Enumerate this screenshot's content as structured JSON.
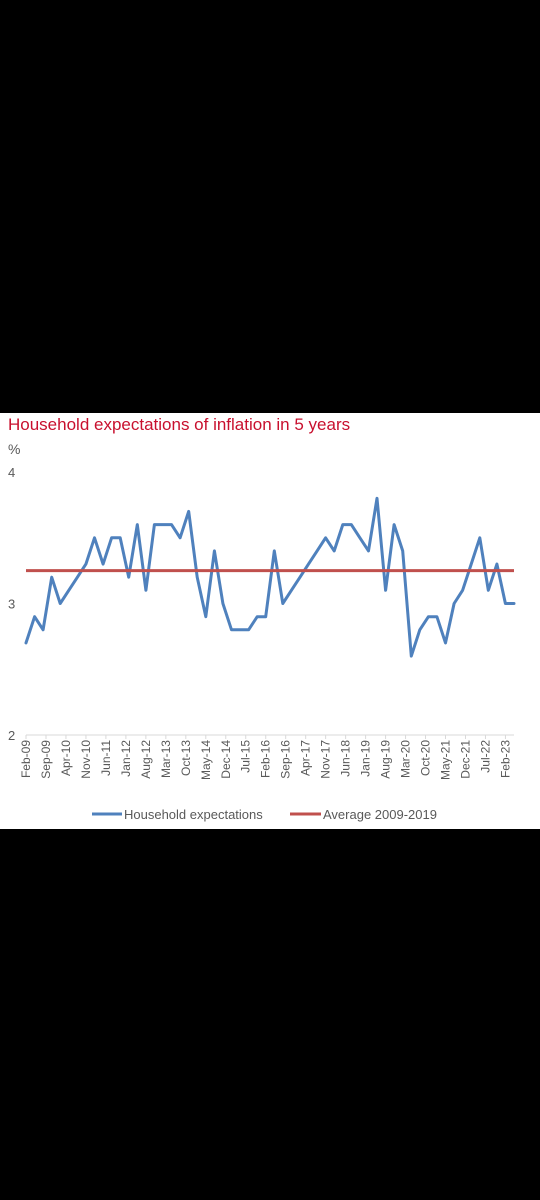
{
  "colors": {
    "background": "#000000",
    "panel": "#ffffff",
    "title": "#c8102e",
    "household_series": "#4f81bd",
    "average_series": "#c0504d",
    "axis_text": "#595959",
    "axis_line": "#d9d9d9"
  },
  "chart_data": {
    "type": "line",
    "title": "Household expectations of inflation in 5 years",
    "ylabel": "%",
    "ylim": [
      2,
      4
    ],
    "yticks": [
      2,
      3,
      4
    ],
    "grid": false,
    "legend": "bottom",
    "x_tick_labels": [
      "Feb-09",
      "Sep-09",
      "Apr-10",
      "Nov-10",
      "Jun-11",
      "Jan-12",
      "Aug-12",
      "Mar-13",
      "Oct-13",
      "May-14",
      "Dec-14",
      "Jul-15",
      "Feb-16",
      "Sep-16",
      "Apr-17",
      "Nov-17",
      "Jun-18",
      "Jan-19",
      "Aug-19",
      "Mar-20",
      "Oct-20",
      "May-21",
      "Dec-21",
      "Jul-22",
      "Feb-23"
    ],
    "series": [
      {
        "name": "Household expectations",
        "points": [
          [
            "Feb-09",
            2.7
          ],
          [
            "May-09",
            2.9
          ],
          [
            "Aug-09",
            2.8
          ],
          [
            "Nov-09",
            3.2
          ],
          [
            "Feb-10",
            3.0
          ],
          [
            "May-10",
            3.1
          ],
          [
            "Aug-10",
            3.2
          ],
          [
            "Nov-10",
            3.3
          ],
          [
            "Feb-11",
            3.5
          ],
          [
            "May-11",
            3.3
          ],
          [
            "Aug-11",
            3.5
          ],
          [
            "Nov-11",
            3.5
          ],
          [
            "Feb-12",
            3.2
          ],
          [
            "May-12",
            3.6
          ],
          [
            "Aug-12",
            3.1
          ],
          [
            "Nov-12",
            3.6
          ],
          [
            "Feb-13",
            3.6
          ],
          [
            "May-13",
            3.6
          ],
          [
            "Aug-13",
            3.5
          ],
          [
            "Nov-13",
            3.7
          ],
          [
            "Feb-14",
            3.2
          ],
          [
            "May-14",
            2.9
          ],
          [
            "Aug-14",
            3.4
          ],
          [
            "Nov-14",
            3.0
          ],
          [
            "Feb-15",
            2.8
          ],
          [
            "May-15",
            2.8
          ],
          [
            "Aug-15",
            2.8
          ],
          [
            "Nov-15",
            2.9
          ],
          [
            "Feb-16",
            2.9
          ],
          [
            "May-16",
            3.4
          ],
          [
            "Aug-16",
            3.0
          ],
          [
            "Nov-16",
            3.1
          ],
          [
            "Feb-17",
            3.2
          ],
          [
            "May-17",
            3.3
          ],
          [
            "Aug-17",
            3.4
          ],
          [
            "Nov-17",
            3.5
          ],
          [
            "Feb-18",
            3.4
          ],
          [
            "May-18",
            3.6
          ],
          [
            "Aug-18",
            3.6
          ],
          [
            "Nov-18",
            3.5
          ],
          [
            "Feb-19",
            3.4
          ],
          [
            "May-19",
            3.8
          ],
          [
            "Aug-19",
            3.1
          ],
          [
            "Nov-19",
            3.6
          ],
          [
            "Feb-20",
            3.4
          ],
          [
            "May-20",
            2.6
          ],
          [
            "Aug-20",
            2.8
          ],
          [
            "Nov-20",
            2.9
          ],
          [
            "Feb-21",
            2.9
          ],
          [
            "May-21",
            2.7
          ],
          [
            "Aug-21",
            3.0
          ],
          [
            "Nov-21",
            3.1
          ],
          [
            "Feb-22",
            3.3
          ],
          [
            "May-22",
            3.5
          ],
          [
            "Aug-22",
            3.1
          ],
          [
            "Nov-22",
            3.3
          ],
          [
            "Feb-23",
            3.0
          ],
          [
            "May-23",
            3.0
          ]
        ]
      },
      {
        "name": "Average 2009-2019",
        "points": [
          [
            "Feb-09",
            3.25
          ],
          [
            "May-23",
            3.25
          ]
        ]
      }
    ]
  }
}
